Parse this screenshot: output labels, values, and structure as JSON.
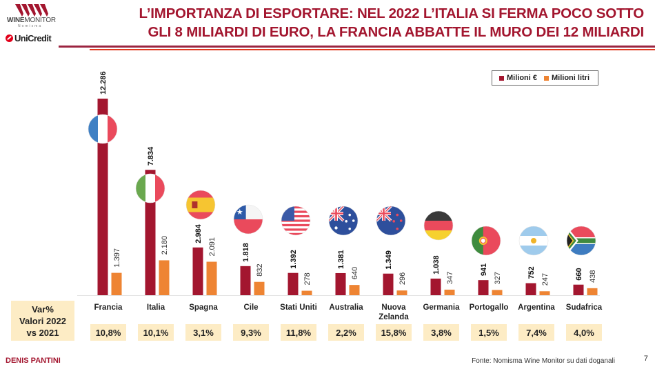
{
  "brand": {
    "winemonitor_bold": "WINE",
    "winemonitor_thin": "MONITOR",
    "winemonitor_sub": "Nomisma",
    "unicredit": "UniCredit"
  },
  "header": {
    "title_line1": "L’IMPORTANZA DI ESPORTARE: NEL 2022 L’ITALIA SI FERMA POCO SOTTO",
    "title_line2": "GLI 8 MILIARDI DI EURO, LA FRANCIA ABBATTE IL MURO DEI 12 MILIARDI"
  },
  "colors": {
    "value_bar": "#a3162f",
    "volume_bar": "#ee8433",
    "accent": "#a3162f",
    "var_box_bg": "#fdecc5"
  },
  "var_table": {
    "label_line1": "Var%",
    "label_line2": "Valori 2022",
    "label_line3": "vs 2021",
    "values": [
      "10,8%",
      "10,1%",
      "3,1%",
      "9,3%",
      "11,8%",
      "2,2%",
      "15,8%",
      "3,8%",
      "1,5%",
      "7,4%",
      "4,0%"
    ]
  },
  "chart_data": {
    "type": "bar",
    "title": "L’IMPORTANZA DI ESPORTARE: NEL 2022 L’ITALIA SI FERMA POCO SOTTO GLI 8 MILIARDI DI EURO, LA FRANCIA ABBATTE IL MURO DEI 12 MILIARDI",
    "xlabel": "",
    "ylabel": "",
    "categories": [
      "Francia",
      "Italia",
      "Spagna",
      "Cile",
      "Stati Uniti",
      "Australia",
      "Nuova Zelanda",
      "Germania",
      "Portogallo",
      "Argentina",
      "Sudafrica"
    ],
    "category_lines": [
      [
        "Francia"
      ],
      [
        "Italia"
      ],
      [
        "Spagna"
      ],
      [
        "Cile"
      ],
      [
        "Stati Uniti"
      ],
      [
        "Australia"
      ],
      [
        "Nuova",
        "Zelanda"
      ],
      [
        "Germania"
      ],
      [
        "Portogallo"
      ],
      [
        "Argentina"
      ],
      [
        "Sudafrica"
      ]
    ],
    "flags": [
      "france-flag",
      "italy-flag",
      "spain-flag",
      "chile-flag",
      "usa-flag",
      "australia-flag",
      "new-zealand-flag",
      "germany-flag",
      "portugal-flag",
      "argentina-flag",
      "south-africa-flag"
    ],
    "series": [
      {
        "name": "Milioni €",
        "values": [
          12286,
          7834,
          2984,
          1818,
          1392,
          1381,
          1349,
          1038,
          941,
          752,
          660
        ],
        "labels": [
          "12.286",
          "7.834",
          "2.984",
          "1.818",
          "1.392",
          "1.381",
          "1.349",
          "1.038",
          "941",
          "752",
          "660"
        ]
      },
      {
        "name": "Milioni litri",
        "values": [
          1397,
          2180,
          2091,
          832,
          278,
          640,
          296,
          347,
          327,
          247,
          438
        ],
        "labels": [
          "1.397",
          "2.180",
          "2.091",
          "832",
          "278",
          "640",
          "296",
          "347",
          "327",
          "247",
          "438"
        ]
      }
    ],
    "ylim": [
      0,
      12286
    ],
    "grid": false,
    "legend": "top-right"
  },
  "footer": {
    "author": "DENIS PANTINI",
    "source": "Fonte: Nomisma Wine Monitor su dati doganali",
    "page": "7"
  }
}
